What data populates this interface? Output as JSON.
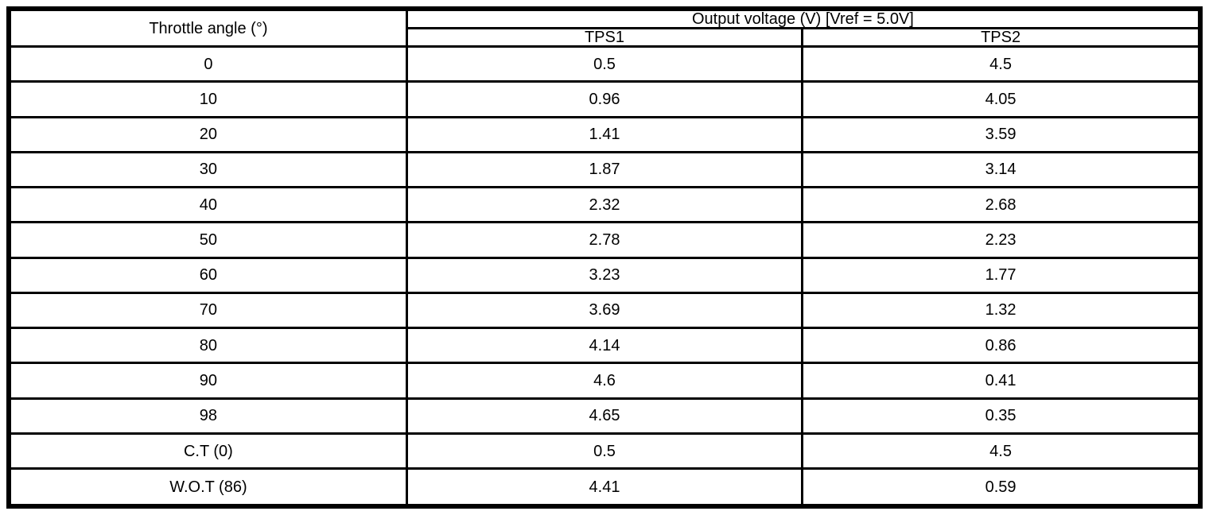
{
  "table": {
    "angle_header": "Throttle angle (°)",
    "group_header": "Output voltage (V) [Vref = 5.0V]",
    "sub_headers": {
      "tps1": "TPS1",
      "tps2": "TPS2"
    },
    "rows": [
      {
        "angle": "0",
        "tps1": "0.5",
        "tps2": "4.5"
      },
      {
        "angle": "10",
        "tps1": "0.96",
        "tps2": "4.05"
      },
      {
        "angle": "20",
        "tps1": "1.41",
        "tps2": "3.59"
      },
      {
        "angle": "30",
        "tps1": "1.87",
        "tps2": "3.14"
      },
      {
        "angle": "40",
        "tps1": "2.32",
        "tps2": "2.68"
      },
      {
        "angle": "50",
        "tps1": "2.78",
        "tps2": "2.23"
      },
      {
        "angle": "60",
        "tps1": "3.23",
        "tps2": "1.77"
      },
      {
        "angle": "70",
        "tps1": "3.69",
        "tps2": "1.32"
      },
      {
        "angle": "80",
        "tps1": "4.14",
        "tps2": "0.86"
      },
      {
        "angle": "90",
        "tps1": "4.6",
        "tps2": "0.41"
      },
      {
        "angle": "98",
        "tps1": "4.65",
        "tps2": "0.35"
      },
      {
        "angle": "C.T (0)",
        "tps1": "0.5",
        "tps2": "4.5"
      },
      {
        "angle": "W.O.T (86)",
        "tps1": "4.41",
        "tps2": "0.59"
      }
    ]
  },
  "colors": {
    "border": "#000000",
    "background": "#ffffff",
    "text": "#000000"
  }
}
